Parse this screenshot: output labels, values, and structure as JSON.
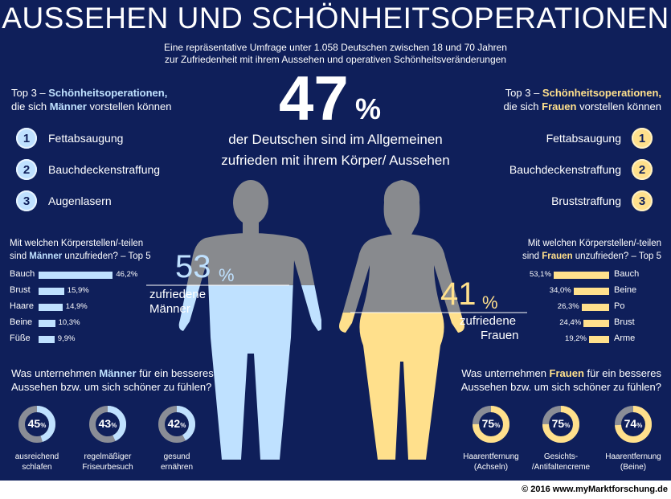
{
  "title": "AUSSEHEN UND SCHÖNHEITSOPERATIONEN",
  "subtitle_1": "Eine repräsentative Umfrage unter 1.058 Deutschen zwischen 18 und 70 Jahren",
  "subtitle_2": "zur Zufriedenheit mit ihrem Aussehen und operativen Schönheitsveränderungen",
  "headline": {
    "value": "47",
    "unit": "%",
    "text_1": "der Deutschen sind im Allgemeinen",
    "text_2": "zufrieden mit ihrem Körper/ Aussehen"
  },
  "men": {
    "top3_title_pre": "Top 3 – ",
    "top3_title_hl": "Schönheitsoperationen,",
    "top3_line2_pre": "die sich ",
    "top3_line2_hl": "Männer",
    "top3_line2_post": " vorstellen können",
    "top3": [
      {
        "rank": "1",
        "label": "Fettabsaugung"
      },
      {
        "rank": "2",
        "label": "Bauchdeckenstraffung"
      },
      {
        "rank": "3",
        "label": "Augenlasern"
      }
    ],
    "body_title_1": "Mit welchen Körperstellen/-teilen",
    "body_title_2_pre": "sind ",
    "body_title_2_hl": "Männer",
    "body_title_2_post": " unzufrieden? – Top 5",
    "satisfied_value": "53",
    "satisfied_unit": "%",
    "satisfied_label_1": "zufriedene",
    "satisfied_label_2": "Männer",
    "actions_title_1_pre": "Was unternehmen ",
    "actions_title_1_hl": "Männer",
    "actions_title_1_post": " für ein besseres",
    "actions_title_2": "Aussehen bzw. um sich schöner zu fühlen?"
  },
  "women": {
    "top3_title_pre": "Top 3 – ",
    "top3_title_hl": "Schönheitsoperationen,",
    "top3_line2_pre": "die sich ",
    "top3_line2_hl": "Frauen",
    "top3_line2_post": " vorstellen können",
    "top3": [
      {
        "rank": "1",
        "label": "Fettabsaugung"
      },
      {
        "rank": "2",
        "label": "Bauchdeckenstraffung"
      },
      {
        "rank": "3",
        "label": "Bruststraffung"
      }
    ],
    "body_title_1": "Mit welchen Körperstellen/-teilen",
    "body_title_2_pre": "sind ",
    "body_title_2_hl": "Frauen",
    "body_title_2_post": " unzufrieden? – Top 5",
    "satisfied_value": "41",
    "satisfied_unit": "%",
    "satisfied_label_1": "zufriedene",
    "satisfied_label_2": "Frauen",
    "actions_title_1_pre": "Was unternehmen ",
    "actions_title_1_hl": "Frauen",
    "actions_title_1_post": " für ein besseres",
    "actions_title_2": "Aussehen bzw. um sich schöner zu fühlen?"
  },
  "chart_data": [
    {
      "type": "bar",
      "title": "Mit welchen Körperstellen/-teilen sind Männer unzufrieden? – Top 5",
      "categories": [
        "Bauch",
        "Brust",
        "Haare",
        "Beine",
        "Füße"
      ],
      "values": [
        46.2,
        15.9,
        14.9,
        10.3,
        9.9
      ],
      "value_labels": [
        "46,2%",
        "15,9%",
        "14,9%",
        "10,3%",
        "9,9%"
      ]
    },
    {
      "type": "bar",
      "title": "Mit welchen Körperstellen/-teilen sind Frauen unzufrieden? – Top 5",
      "categories": [
        "Bauch",
        "Beine",
        "Po",
        "Brust",
        "Arme"
      ],
      "values": [
        53.1,
        34.0,
        26.3,
        24.4,
        19.2
      ],
      "value_labels": [
        "53,1%",
        "34,0%",
        "26,3%",
        "24,4%",
        "19,2%"
      ]
    },
    {
      "type": "pie",
      "title": "Was unternehmen Männer für ein besseres Aussehen bzw. um sich schöner zu fühlen?",
      "categories": [
        "ausreichend schlafen",
        "regelmäßiger Friseurbesuch",
        "gesund ernähren"
      ],
      "label_lines": [
        [
          "ausreichend",
          "schlafen"
        ],
        [
          "regelmäßiger",
          "Friseurbesuch"
        ],
        [
          "gesund",
          "ernähren"
        ]
      ],
      "values": [
        45,
        43,
        42
      ],
      "unit": "%"
    },
    {
      "type": "pie",
      "title": "Was unternehmen Frauen für ein besseres Aussehen bzw. um sich schöner zu fühlen?",
      "categories": [
        "Haarentfernung (Achseln)",
        "Gesichts-/Antifaltencreme",
        "Haarentfernung (Beine)"
      ],
      "label_lines": [
        [
          "Haarentfernung",
          "(Achseln)"
        ],
        [
          "Gesichts-",
          "/Antifaltencreme"
        ],
        [
          "Haarentfernung",
          "(Beine)"
        ]
      ],
      "values": [
        75,
        75,
        74
      ],
      "unit": "%"
    }
  ],
  "colors": {
    "background": "#0f1f5a",
    "men_accent": "#bfe1ff",
    "women_accent": "#ffe08c",
    "silhouette_grey": "#888a8e",
    "donut_track": "#8a8d96"
  },
  "copyright": "© 2016 www.myMarktforschung.de"
}
